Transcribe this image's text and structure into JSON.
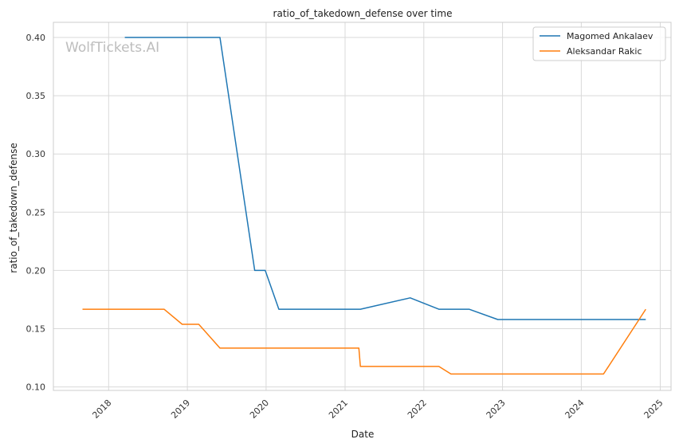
{
  "chart_data": {
    "type": "line",
    "title": "ratio_of_takedown_defense over time",
    "xlabel": "Date",
    "ylabel": "ratio_of_takedown_defense",
    "watermark": "WolfTickets.AI",
    "x_axis": {
      "type": "date",
      "range": [
        "2017-04-20",
        "2025-02-20"
      ],
      "ticks": [
        "2018",
        "2019",
        "2020",
        "2021",
        "2022",
        "2023",
        "2024",
        "2025"
      ]
    },
    "y_axis": {
      "range": [
        0.097,
        0.413
      ],
      "ticks": [
        "0.10",
        "0.15",
        "0.20",
        "0.25",
        "0.30",
        "0.35",
        "0.40"
      ]
    },
    "grid": true,
    "legend_position": "top-right",
    "series": [
      {
        "name": "Magomed Ankalaev",
        "color": "#1f77b4",
        "points": [
          [
            "2018-03-17",
            0.4
          ],
          [
            "2019-06-01",
            0.4
          ],
          [
            "2019-11-09",
            0.2
          ],
          [
            "2019-12-28",
            0.2
          ],
          [
            "2020-02-29",
            0.1667
          ],
          [
            "2021-03-13",
            0.1667
          ],
          [
            "2021-10-30",
            0.1765
          ],
          [
            "2022-03-12",
            0.1667
          ],
          [
            "2022-07-30",
            0.1667
          ],
          [
            "2022-12-10",
            0.1579
          ],
          [
            "2024-10-26",
            0.1579
          ]
        ]
      },
      {
        "name": "Aleksandar Rakic",
        "color": "#ff7f0e",
        "points": [
          [
            "2017-09-02",
            0.1667
          ],
          [
            "2018-09-15",
            0.1667
          ],
          [
            "2018-12-08",
            0.1538
          ],
          [
            "2019-02-23",
            0.1538
          ],
          [
            "2019-06-01",
            0.1333
          ],
          [
            "2021-03-06",
            0.1333
          ],
          [
            "2021-03-13",
            0.1176
          ],
          [
            "2022-03-12",
            0.1176
          ],
          [
            "2022-05-07",
            0.1111
          ],
          [
            "2024-04-13",
            0.1111
          ],
          [
            "2024-10-26",
            0.1667
          ]
        ]
      }
    ]
  }
}
